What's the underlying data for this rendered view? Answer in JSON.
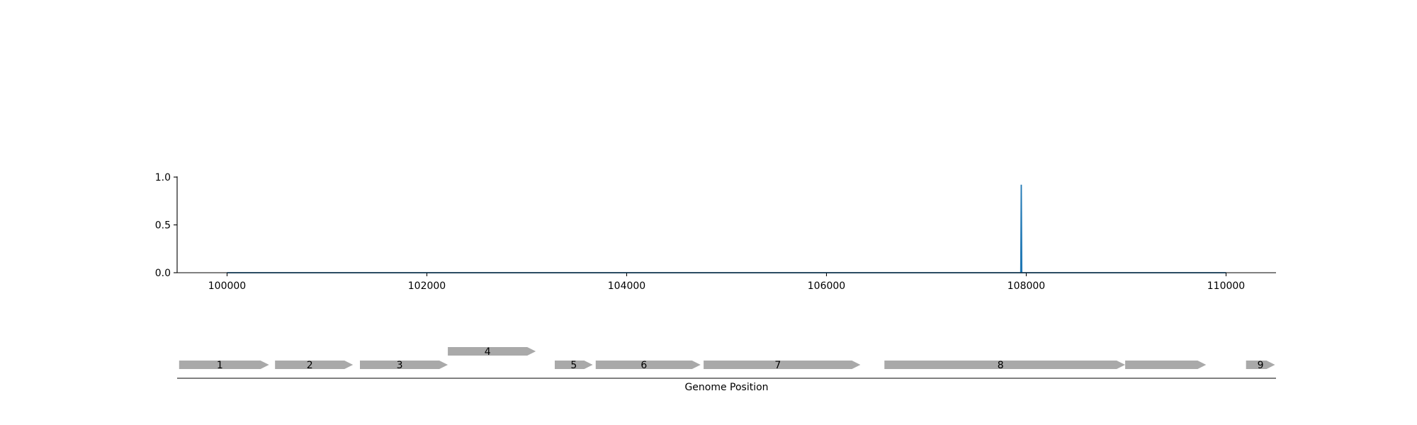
{
  "chart_data": [
    {
      "type": "line",
      "title": "",
      "xlabel": "",
      "ylabel": "",
      "xlim": [
        99500,
        110500
      ],
      "ylim": [
        0,
        1.0
      ],
      "grid": false,
      "legend": "none",
      "x_ticks": [
        100000,
        102000,
        104000,
        106000,
        108000,
        110000
      ],
      "y_ticks": [
        0.0,
        0.5,
        1.0
      ],
      "x_tick_labels": [
        "100000",
        "102000",
        "104000",
        "106000",
        "108000",
        "110000"
      ],
      "y_tick_labels": [
        "0.0",
        "0.5",
        "1.0"
      ],
      "series": [
        {
          "color": "#1f77b4",
          "points": [
            [
              100000,
              0.0
            ],
            [
              107945,
              0.0
            ],
            [
              107950,
              0.92
            ],
            [
              107955,
              0.0
            ],
            [
              110000,
              0.0
            ]
          ]
        }
      ]
    },
    {
      "type": "gene_track",
      "xlabel": "Genome Position",
      "xlim": [
        99500,
        110500
      ],
      "color": "#a9a9a9",
      "genes": [
        {
          "label": "1",
          "start": 99520,
          "end": 100420,
          "lane": 0
        },
        {
          "label": "2",
          "start": 100480,
          "end": 101260,
          "lane": 0
        },
        {
          "label": "3",
          "start": 101330,
          "end": 102210,
          "lane": 0
        },
        {
          "label": "4",
          "start": 102210,
          "end": 103090,
          "lane": 1
        },
        {
          "label": "5",
          "start": 103280,
          "end": 103660,
          "lane": 0
        },
        {
          "label": "6",
          "start": 103690,
          "end": 104740,
          "lane": 0
        },
        {
          "label": "7",
          "start": 104770,
          "end": 106340,
          "lane": 0
        },
        {
          "label": "8",
          "start": 106580,
          "end": 108990,
          "lane": 0
        },
        {
          "label": "8",
          "start": 108990,
          "end": 109800,
          "lane": 0,
          "continuation": true
        },
        {
          "label": "9",
          "start": 110200,
          "end": 110490,
          "lane": 0
        }
      ]
    }
  ]
}
